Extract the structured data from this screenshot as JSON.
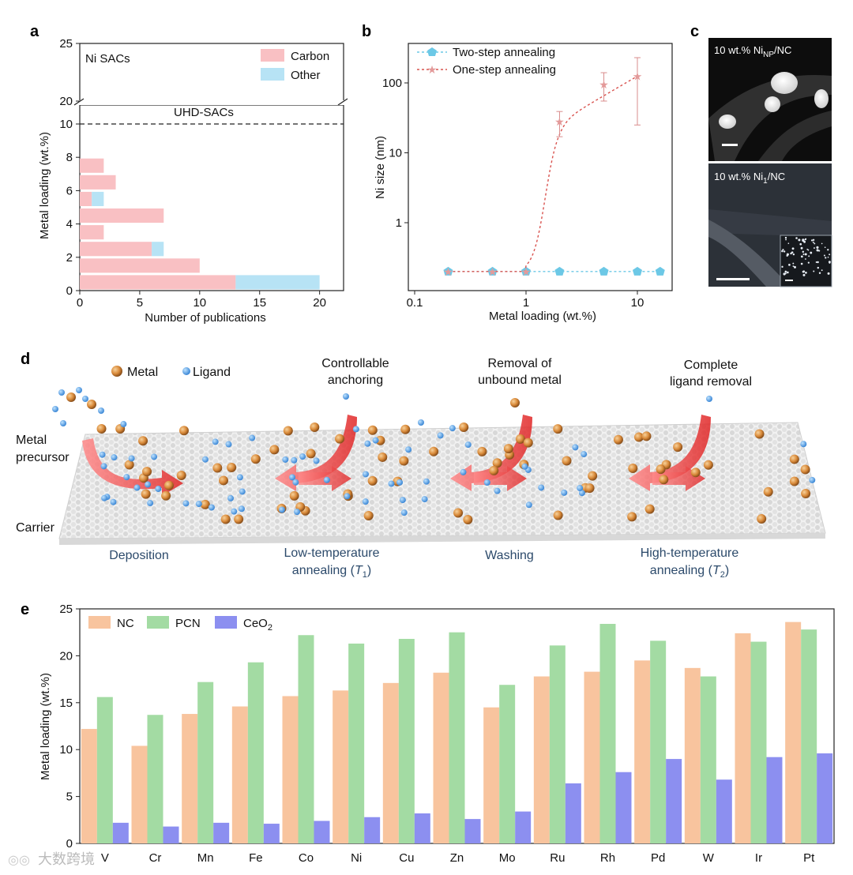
{
  "colors": {
    "carbon": "#f9c0c3",
    "other": "#b7e3f5",
    "nc": "#f8c49e",
    "pcn": "#a3dba3",
    "ceo2": "#8c8ff0",
    "two_step": "#6cc8e6",
    "one_step": "#d9534f"
  },
  "panels": {
    "a": {
      "letter": "a",
      "corner_label": "Ni SACs",
      "dashed_label": "UHD-SACs",
      "xlabel": "Number of publications",
      "ylabel": "Metal loading (wt.%)",
      "legend": [
        "Carbon",
        "Other"
      ],
      "x_ticks": [
        "0",
        "5",
        "10",
        "15",
        "20"
      ],
      "y_ticks_lower": [
        "0",
        "2",
        "4",
        "6",
        "8",
        "10"
      ],
      "y_ticks_upper": [
        "20",
        "25"
      ]
    },
    "b": {
      "letter": "b",
      "xlabel": "Metal loading (wt.%)",
      "ylabel": "Ni size (nm)",
      "legend": [
        "Two-step annealing",
        "One-step annealing"
      ],
      "x_ticks": [
        "0.1",
        "1",
        "10"
      ],
      "y_ticks": [
        "1",
        "10",
        "100"
      ]
    },
    "c": {
      "letter": "c",
      "top_label": "10 wt.% Ni",
      "top_sub": "NP",
      "top_suffix": "/NC",
      "bottom_label": "10 wt.% Ni",
      "bottom_sub": "1",
      "bottom_suffix": "/NC"
    },
    "d": {
      "letter": "d",
      "legend_metal": "Metal",
      "legend_ligand": "Ligand",
      "metal_precursor_1": "Metal",
      "metal_precursor_2": "precursor",
      "carrier": "Carrier",
      "annotations": [
        {
          "l1": "Controllable",
          "l2": "anchoring"
        },
        {
          "l1": "Removal of",
          "l2": "unbound metal"
        },
        {
          "l1": "Complete",
          "l2": "ligand removal"
        }
      ],
      "steps": [
        {
          "l1": "Deposition",
          "l2": ""
        },
        {
          "l1": "Low-temperature",
          "l2": "annealing (",
          "sym": "T",
          "sub": "1",
          "end": ")"
        },
        {
          "l1": "Washing",
          "l2": ""
        },
        {
          "l1": "High-temperature",
          "l2": "annealing (",
          "sym": "T",
          "sub": "2",
          "end": ")"
        }
      ]
    },
    "e": {
      "letter": "e",
      "ylabel": "Metal loading (wt.%)",
      "legend": [
        "NC",
        "PCN",
        "CeO",
        "2"
      ],
      "y_ticks": [
        "0",
        "5",
        "10",
        "15",
        "20",
        "25"
      ]
    }
  },
  "watermark": "大数跨境",
  "chart_data": [
    {
      "panel": "a",
      "type": "bar",
      "orientation": "horizontal-stacked",
      "title": "Ni SACs",
      "xlabel": "Number of publications",
      "ylabel": "Metal loading (wt.%)",
      "xlim": [
        0,
        22
      ],
      "ylim_lower": [
        0,
        10.5
      ],
      "ylim_upper": [
        20,
        25
      ],
      "y_axis_break": true,
      "reference_line": {
        "y": 10,
        "label": "UHD-SACs",
        "style": "dashed"
      },
      "bins": [
        {
          "y_range": [
            0,
            1
          ],
          "carbon": 13,
          "other": 7
        },
        {
          "y_range": [
            1,
            2
          ],
          "carbon": 10,
          "other": 0
        },
        {
          "y_range": [
            2,
            3
          ],
          "carbon": 6,
          "other": 1
        },
        {
          "y_range": [
            3,
            4
          ],
          "carbon": 2,
          "other": 0
        },
        {
          "y_range": [
            4,
            5
          ],
          "carbon": 7,
          "other": 0
        },
        {
          "y_range": [
            5,
            6
          ],
          "carbon": 1,
          "other": 1
        },
        {
          "y_range": [
            6,
            7
          ],
          "carbon": 3,
          "other": 0
        },
        {
          "y_range": [
            7,
            8
          ],
          "carbon": 2,
          "other": 0
        }
      ],
      "series": [
        {
          "name": "Carbon"
        },
        {
          "name": "Other"
        }
      ],
      "legend_position": "top-right"
    },
    {
      "panel": "b",
      "type": "line",
      "xscale": "log",
      "yscale": "log",
      "xlabel": "Metal loading (wt.%)",
      "ylabel": "Ni size (nm)",
      "xlim": [
        0.1,
        20
      ],
      "ylim": [
        0.15,
        500
      ],
      "series": [
        {
          "name": "Two-step annealing",
          "x": [
            0.2,
            0.5,
            1,
            2,
            5,
            10,
            16
          ],
          "y": [
            0.2,
            0.2,
            0.2,
            0.2,
            0.2,
            0.2,
            0.2
          ]
        },
        {
          "name": "One-step annealing",
          "x": [
            0.2,
            0.5,
            1,
            2,
            5,
            10
          ],
          "y": [
            0.2,
            0.2,
            0.2,
            28,
            95,
            125
          ],
          "err_low": [
            0.2,
            0.2,
            0.2,
            17,
            55,
            25
          ],
          "err_high": [
            0.2,
            0.2,
            0.2,
            39,
            140,
            230
          ]
        }
      ],
      "legend_position": "top-left"
    },
    {
      "panel": "e",
      "type": "bar",
      "ylabel": "Metal loading (wt.%)",
      "ylim": [
        0,
        25
      ],
      "categories": [
        "V",
        "Cr",
        "Mn",
        "Fe",
        "Co",
        "Ni",
        "Cu",
        "Zn",
        "Mo",
        "Ru",
        "Rh",
        "Pd",
        "W",
        "Ir",
        "Pt"
      ],
      "series": [
        {
          "name": "NC",
          "values": [
            12.2,
            10.4,
            13.8,
            14.6,
            15.7,
            16.3,
            17.1,
            18.2,
            14.5,
            17.8,
            18.3,
            19.5,
            18.7,
            22.4,
            23.6
          ]
        },
        {
          "name": "PCN",
          "values": [
            15.6,
            13.7,
            17.2,
            19.3,
            22.2,
            21.3,
            21.8,
            22.5,
            16.9,
            21.1,
            23.4,
            21.6,
            17.8,
            21.5,
            22.8
          ]
        },
        {
          "name": "CeO2",
          "values": [
            2.2,
            1.8,
            2.2,
            2.1,
            2.4,
            2.8,
            3.2,
            2.6,
            3.4,
            6.4,
            7.6,
            9.0,
            6.8,
            9.2,
            9.6
          ]
        }
      ],
      "legend_position": "top-left"
    }
  ]
}
